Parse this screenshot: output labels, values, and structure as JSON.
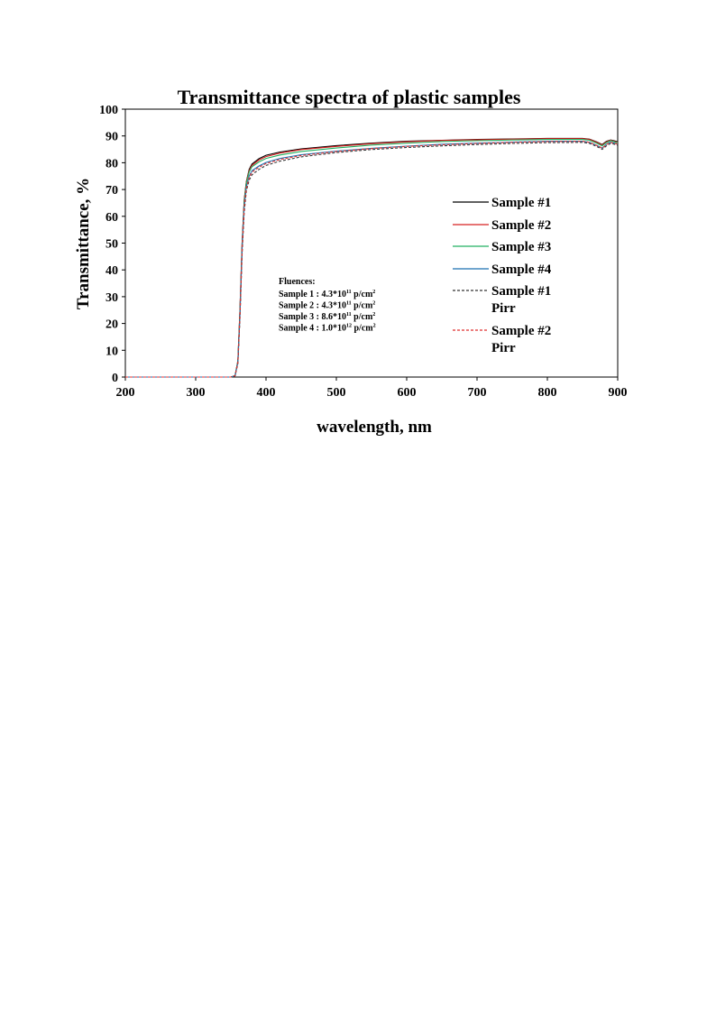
{
  "chart_data": {
    "type": "line",
    "title": "Transmittance spectra of plastic samples",
    "xlabel": "wavelength, nm",
    "ylabel": "Transmittance, %",
    "xlim": [
      200,
      900
    ],
    "ylim": [
      0,
      100
    ],
    "xticks": [
      200,
      300,
      400,
      500,
      600,
      700,
      800,
      900
    ],
    "yticks": [
      0,
      10,
      20,
      30,
      40,
      50,
      60,
      70,
      80,
      90,
      100
    ],
    "grid": false,
    "legend_position": "right",
    "x": [
      200,
      350,
      356,
      360,
      363,
      366,
      369,
      372,
      376,
      380,
      390,
      400,
      420,
      450,
      500,
      550,
      600,
      650,
      700,
      750,
      800,
      850,
      860,
      870,
      878,
      884,
      890,
      895,
      900
    ],
    "series": [
      {
        "name": "Sample #1",
        "color": "#000000",
        "dash": "solid",
        "values": [
          0,
          0,
          0.5,
          6,
          25,
          50,
          66,
          73,
          77.5,
          79.5,
          81.5,
          82.8,
          84,
          85.2,
          86.4,
          87.3,
          88,
          88.4,
          88.7,
          88.9,
          89.1,
          89.1,
          88.8,
          87.8,
          86.8,
          88,
          88.5,
          88.2,
          87.8
        ]
      },
      {
        "name": "Sample #2",
        "color": "#d62020",
        "dash": "solid",
        "values": [
          0,
          0,
          0.5,
          6,
          25,
          50,
          66,
          73,
          77,
          79,
          81,
          82.3,
          83.6,
          84.9,
          86.1,
          87.1,
          87.8,
          88.3,
          88.6,
          88.8,
          89,
          89,
          88.7,
          87.6,
          86.6,
          87.8,
          88.4,
          88,
          87.6
        ]
      },
      {
        "name": "Sample #3",
        "color": "#22b060",
        "dash": "solid",
        "values": [
          0,
          0,
          0.5,
          6,
          24,
          49,
          65,
          72.5,
          76.5,
          78.5,
          80.3,
          81.6,
          82.9,
          84.2,
          85.5,
          86.6,
          87.3,
          87.9,
          88.2,
          88.5,
          88.7,
          88.7,
          88.4,
          87.3,
          86.3,
          87.5,
          88.2,
          87.8,
          87.4
        ]
      },
      {
        "name": "Sample #4",
        "color": "#1a6fb0",
        "dash": "solid",
        "values": [
          0,
          0,
          0.5,
          5.5,
          23,
          48,
          63.5,
          71,
          75,
          77,
          78.8,
          80.1,
          81.6,
          83,
          84.3,
          85.4,
          86.2,
          86.9,
          87.3,
          87.7,
          88,
          88,
          87.6,
          86.5,
          85.5,
          86.9,
          87.7,
          87.3,
          86.9
        ]
      },
      {
        "name": "Sample #1 Pirr",
        "color": "#333333",
        "dash": "dashed",
        "values": [
          0,
          0,
          0.5,
          5,
          22,
          46,
          61.5,
          69.5,
          73.5,
          75.5,
          77.5,
          79,
          80.6,
          82.2,
          83.8,
          84.9,
          85.7,
          86.3,
          86.8,
          87.2,
          87.5,
          87.6,
          87.2,
          86.1,
          85,
          86.3,
          87.2,
          86.9,
          86.5
        ]
      },
      {
        "name": "Sample #2 Pirr",
        "color": "#e03030",
        "dash": "dashed",
        "values": [
          0,
          0,
          0.5,
          5.5,
          23,
          47.5,
          63,
          70.5,
          74.5,
          76.5,
          78.3,
          79.7,
          81.2,
          82.7,
          84.2,
          85.3,
          86.1,
          86.7,
          87.2,
          87.6,
          87.9,
          88,
          87.6,
          86.5,
          85.4,
          86.8,
          87.6,
          87.3,
          86.9
        ]
      }
    ],
    "legend": [
      {
        "line1": "Sample #1",
        "line2": ""
      },
      {
        "line1": "Sample #2",
        "line2": ""
      },
      {
        "line1": "Sample #3",
        "line2": ""
      },
      {
        "line1": "Sample #4",
        "line2": ""
      },
      {
        "line1": "Sample #1",
        "line2": "Pirr"
      },
      {
        "line1": "Sample #2",
        "line2": "Pirr"
      }
    ],
    "annotation": {
      "heading": "Fluences:",
      "lines": [
        {
          "label": "Sample 1 :  4.3*10",
          "exp": "11",
          "unit": " p/cm",
          "unit_exp": "2"
        },
        {
          "label": "Sample 2 :  4.3*10",
          "exp": "11",
          "unit": " p/cm",
          "unit_exp": "2"
        },
        {
          "label": "Sample 3 :  8.6*10",
          "exp": "11",
          "unit": " p/cm",
          "unit_exp": "2"
        },
        {
          "label": "Sample 4 :  1.0*10",
          "exp": "12",
          "unit": " p/cm",
          "unit_exp": "2"
        }
      ]
    }
  }
}
